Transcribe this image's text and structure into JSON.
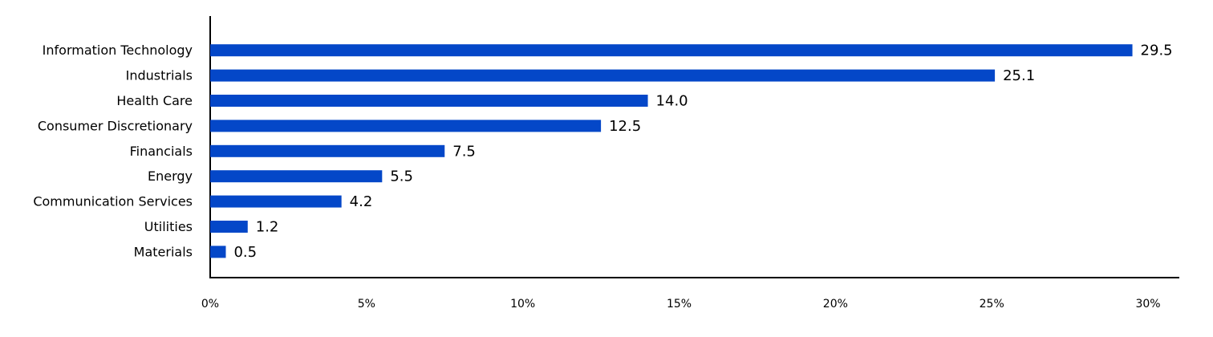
{
  "chart_data": {
    "type": "hbar",
    "categories": [
      "Information Technology",
      "Industrials",
      "Health Care",
      "Consumer Discretionary",
      "Financials",
      "Energy",
      "Communication Services",
      "Utilities",
      "Materials"
    ],
    "values": [
      29.5,
      25.1,
      14.0,
      12.5,
      7.5,
      5.5,
      4.2,
      1.2,
      0.5
    ],
    "value_labels": [
      "29.5",
      "25.1",
      "14.0",
      "12.5",
      "7.5",
      "5.5",
      "4.2",
      "1.2",
      "0.5"
    ],
    "color": "#0447c8",
    "xlim": [
      0,
      31
    ],
    "xticks": [
      {
        "value": 0,
        "label": "0%"
      },
      {
        "value": 5,
        "label": "5%"
      },
      {
        "value": 10,
        "label": "10%"
      },
      {
        "value": 15,
        "label": "15%"
      },
      {
        "value": 20,
        "label": "20%"
      },
      {
        "value": 25,
        "label": "25%"
      },
      {
        "value": 30,
        "label": "30%"
      }
    ],
    "grid": false
  }
}
